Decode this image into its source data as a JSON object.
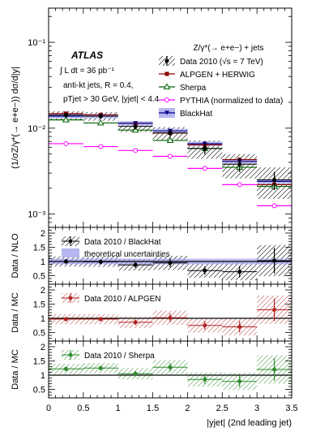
{
  "chart_data": [
    {
      "panel": "main",
      "type": "scatter",
      "ylabel": "(1/σZ/γ*(→ e+e−)) dσ/d|y|",
      "yscale": "log",
      "ylim": [
        0.0007,
        0.25
      ],
      "yticks": [
        "10⁻³",
        "10⁻²",
        "10⁻¹"
      ],
      "ytick_values": [
        0.001,
        0.01,
        0.1
      ],
      "bins": [
        0,
        0.5,
        1.0,
        1.5,
        2.0,
        2.5,
        3.0,
        3.5
      ],
      "atlas": "ATLAS",
      "lumi": "∫ L dt = 36 pb⁻¹",
      "annotations": [
        "anti-kt jets, R = 0.4,",
        "pTjet > 30 GeV, |yjet| < 4.4"
      ],
      "process": "Z/γ*(→ e+e−) + jets",
      "legend_position": "top-right",
      "series": [
        {
          "name": "Data 2010 (√s = 7 TeV)",
          "color": "#000000",
          "values": [
            0.0142,
            0.0138,
            0.0105,
            0.0088,
            0.0058,
            0.0038,
            0.0025
          ],
          "err": [
            0.0016,
            0.0016,
            0.0015,
            0.0015,
            0.0014,
            0.0012,
            0.001
          ]
        },
        {
          "name": "ALPGEN + HERWIG",
          "color": "#8b0000",
          "values": [
            0.0148,
            0.0143,
            0.0114,
            0.0088,
            0.0064,
            0.0043,
            0.0022
          ]
        },
        {
          "name": "Sherpa",
          "color": "#006400",
          "values": [
            0.0125,
            0.0115,
            0.0095,
            0.0072,
            0.0058,
            0.0035,
            0.0021
          ]
        },
        {
          "name": "PYTHIA (normalized to data)",
          "color": "#ff00ff",
          "values": [
            0.0066,
            0.0061,
            0.0055,
            0.0047,
            0.0034,
            0.0022,
            0.00125
          ]
        },
        {
          "name": "BlackHat",
          "color": "#00008b",
          "values": [
            0.0138,
            0.0138,
            0.0114,
            0.0093,
            0.0066,
            0.0041,
            0.0024
          ]
        }
      ]
    },
    {
      "panel": "ratio-nlo",
      "type": "scatter",
      "ylabel": "Data / NLO",
      "ylim": [
        0.2,
        2.2
      ],
      "yticks": [
        "0.5",
        "1",
        "1.5",
        "2"
      ],
      "ytick_values": [
        0.5,
        1,
        1.5,
        2
      ],
      "legend": [
        "Data 2010 / BlackHat",
        "theoretical uncertainties"
      ],
      "values": [
        1.0,
        0.99,
        0.88,
        0.95,
        0.68,
        0.64,
        1.03
      ],
      "err": [
        0.08,
        0.08,
        0.1,
        0.15,
        0.15,
        0.2,
        0.45
      ]
    },
    {
      "panel": "ratio-alpgen",
      "type": "scatter",
      "ylabel": "Data / MC",
      "ylim": [
        0.2,
        2.2
      ],
      "yticks": [
        "0.5",
        "1",
        "1.5",
        "2"
      ],
      "ytick_values": [
        0.5,
        1,
        1.5,
        2
      ],
      "legend": [
        "Data 2010 / ALPGEN"
      ],
      "values": [
        0.97,
        0.97,
        0.86,
        1.02,
        0.75,
        0.7,
        1.3
      ],
      "err": [
        0.08,
        0.08,
        0.1,
        0.15,
        0.15,
        0.2,
        0.4
      ]
    },
    {
      "panel": "ratio-sherpa",
      "type": "scatter",
      "ylabel": "Data / MC",
      "ylim": [
        0.2,
        2.2
      ],
      "yticks": [
        "0.5",
        "1",
        "1.5",
        "2"
      ],
      "ytick_values": [
        0.5,
        1,
        1.5,
        2
      ],
      "legend": [
        "Data 2010 / Sherpa"
      ],
      "values": [
        1.22,
        1.25,
        1.05,
        1.28,
        0.85,
        0.78,
        1.2
      ],
      "err": [
        0.08,
        0.08,
        0.1,
        0.15,
        0.15,
        0.2,
        0.4
      ]
    }
  ],
  "xaxis": {
    "xlim": [
      0,
      3.5
    ],
    "xticks": [
      "0",
      "0.5",
      "1",
      "1.5",
      "2",
      "2.5",
      "3",
      "3.5"
    ],
    "xlabel": "|yjet| (2nd leading jet)"
  }
}
